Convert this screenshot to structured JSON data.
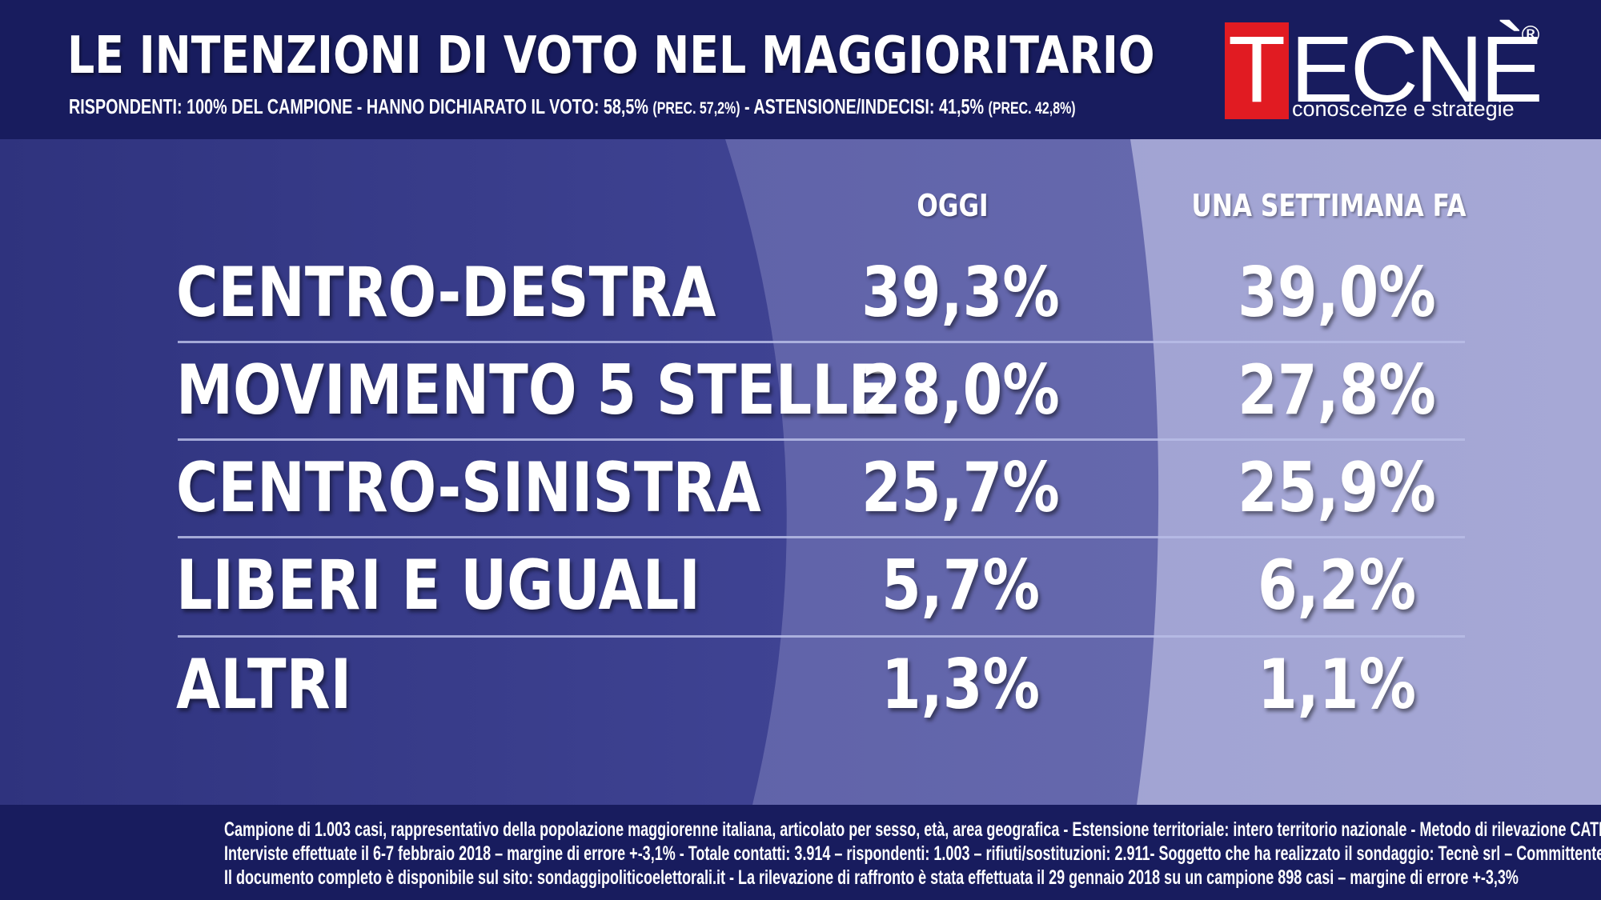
{
  "header": {
    "title": "LE INTENZIONI DI VOTO NEL MAGGIORITARIO",
    "subtitle_parts": {
      "a": "RISPONDENTI: 100% DEL CAMPIONE - HANNO DICHIARATO IL VOTO: 58,5% ",
      "b": "(PREC. 57,2%)",
      "c": " - ASTENSIONE/INDECISI: 41,5% ",
      "d": "(PREC. 42,8%)"
    }
  },
  "logo": {
    "first_letter": "T",
    "rest": "ECNÈ",
    "registered": "®",
    "tagline": "conoscenze e strategie"
  },
  "chart_data": {
    "type": "table",
    "columns": [
      "OGGI",
      "UNA SETTIMANA FA"
    ],
    "rows": [
      {
        "label": "CENTRO-DESTRA",
        "today": "39,3%",
        "week_ago": "39,0%"
      },
      {
        "label": "MOVIMENTO 5 STELLE",
        "today": "28,0%",
        "week_ago": "27,8%"
      },
      {
        "label": "CENTRO-SINISTRA",
        "today": "25,7%",
        "week_ago": "25,9%"
      },
      {
        "label": "LIBERI E UGUALI",
        "today": "5,7%",
        "week_ago": "6,2%"
      },
      {
        "label": "ALTRI",
        "today": "1,3%",
        "week_ago": "1,1%"
      }
    ],
    "values_today": [
      39.3,
      28.0,
      25.7,
      5.7,
      1.3
    ],
    "values_week_ago": [
      39.0,
      27.8,
      25.9,
      6.2,
      1.1
    ]
  },
  "footer": {
    "lines": [
      "Campione di  1.003 casi, rappresentativo della popolazione maggiorenne italiana, articolato per sesso, età, area geografica - Estensione territoriale: intero territorio nazionale - Metodo di rilevazione CATI/CAWI",
      "Interviste effettuate il 6-7 febbraio 2018 – margine di errore +-3,1%  - Totale contatti: 3.914 – rispondenti: 1.003 – rifiuti/sostituzioni: 2.911- Soggetto che ha realizzato il sondaggio: Tecnè srl – Committente: RTI",
      "Il documento completo è disponibile sul sito: sondaggipoliticoelettorali.it - La rilevazione di raffronto è stata effettuata il 29 gennaio 2018 su un campione 898 casi – margine di errore +-3,3%"
    ]
  },
  "colors": {
    "background_dark": "#181c5e",
    "panel_left": "#3a3e8c",
    "panel_middle": "#5e61a6",
    "panel_right": "#9c9ed0",
    "logo_red": "#e11b22"
  }
}
